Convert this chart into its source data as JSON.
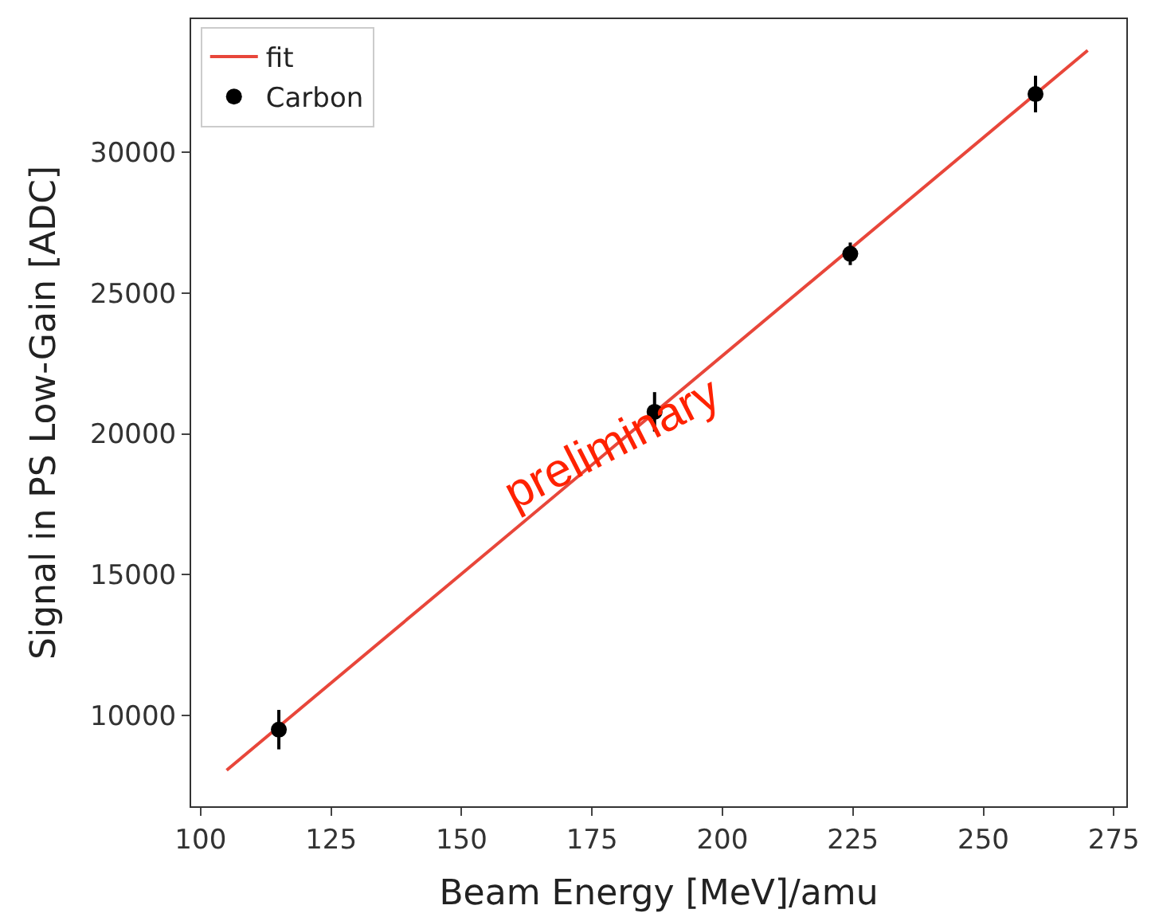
{
  "chart_data": {
    "type": "scatter",
    "xlabel": "Beam Energy [MeV]/amu",
    "ylabel": "Signal in PS Low-Gain [ADC]",
    "x": [
      115,
      187,
      224.5,
      260
    ],
    "series": [
      {
        "name": "fit",
        "type": "line",
        "color": "#e8463a",
        "x": [
          105,
          270
        ],
        "values": [
          8060,
          33610
        ],
        "marker": "none"
      },
      {
        "name": "Carbon",
        "color": "#000000",
        "values": [
          9500,
          20780,
          26390,
          32060
        ],
        "errors": [
          700,
          700,
          400,
          650
        ],
        "marker": "circle"
      }
    ],
    "xlim": [
      98.2,
      277.4
    ],
    "xticks": [
      100,
      125,
      150,
      175,
      200,
      225,
      250,
      275
    ],
    "ylim": [
      6780,
      34720
    ],
    "yticks": [
      10000,
      15000,
      20000,
      25000,
      30000
    ],
    "annotations": [
      "preliminary"
    ],
    "legend": "top left"
  }
}
